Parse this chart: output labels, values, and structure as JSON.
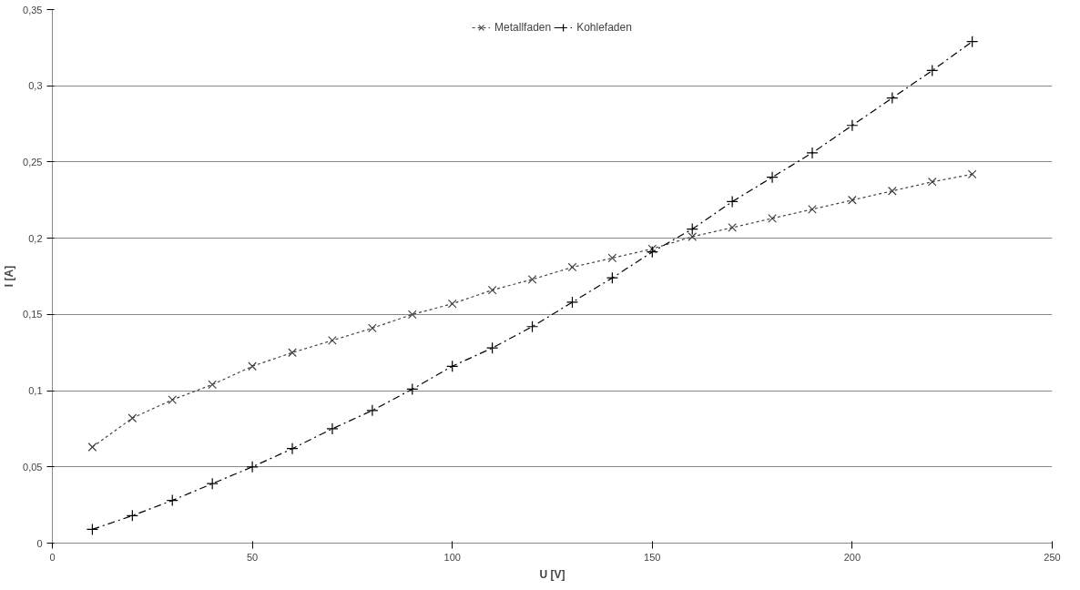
{
  "chart_data": {
    "type": "line",
    "xlabel": "U [V]",
    "ylabel": "I [A]",
    "xlim": [
      0,
      250
    ],
    "xticks": [
      0,
      50,
      100,
      150,
      200,
      250
    ],
    "ylim": [
      0,
      0.35
    ],
    "yticks": [
      0,
      {
        "value": 0.05,
        "label": "0,05"
      },
      {
        "value": 0.1,
        "label": "0,1"
      },
      {
        "value": 0.15,
        "label": "0,15"
      },
      {
        "value": 0.2,
        "label": "0,2"
      },
      {
        "value": 0.25,
        "label": "0,25"
      },
      {
        "value": 0.3,
        "label": "0,3"
      },
      {
        "value": 0.35,
        "label": "0,35"
      }
    ],
    "grid": "y",
    "legend": "top",
    "x": [
      10,
      20,
      30,
      40,
      50,
      60,
      70,
      80,
      90,
      100,
      110,
      120,
      130,
      140,
      150,
      160,
      170,
      180,
      190,
      200,
      210,
      220,
      230
    ],
    "series": [
      {
        "name": "Metallfaden",
        "color": "#404040",
        "marker": "x",
        "line_style": "dotted",
        "values": [
          0.063,
          0.082,
          0.094,
          0.104,
          0.116,
          0.125,
          0.133,
          0.141,
          0.15,
          0.157,
          0.166,
          0.173,
          0.181,
          0.187,
          0.193,
          0.201,
          0.207,
          0.213,
          0.219,
          0.225,
          0.231,
          0.237,
          0.242
        ]
      },
      {
        "name": "Kohlefaden",
        "color": "#000000",
        "marker": "cross",
        "line_style": "dashed",
        "values": [
          0.009,
          0.018,
          0.028,
          0.039,
          0.05,
          0.062,
          0.075,
          0.087,
          0.101,
          0.116,
          0.128,
          0.142,
          0.158,
          0.174,
          0.191,
          0.206,
          0.224,
          0.24,
          0.256,
          0.274,
          0.292,
          0.31,
          0.329
        ]
      }
    ]
  }
}
